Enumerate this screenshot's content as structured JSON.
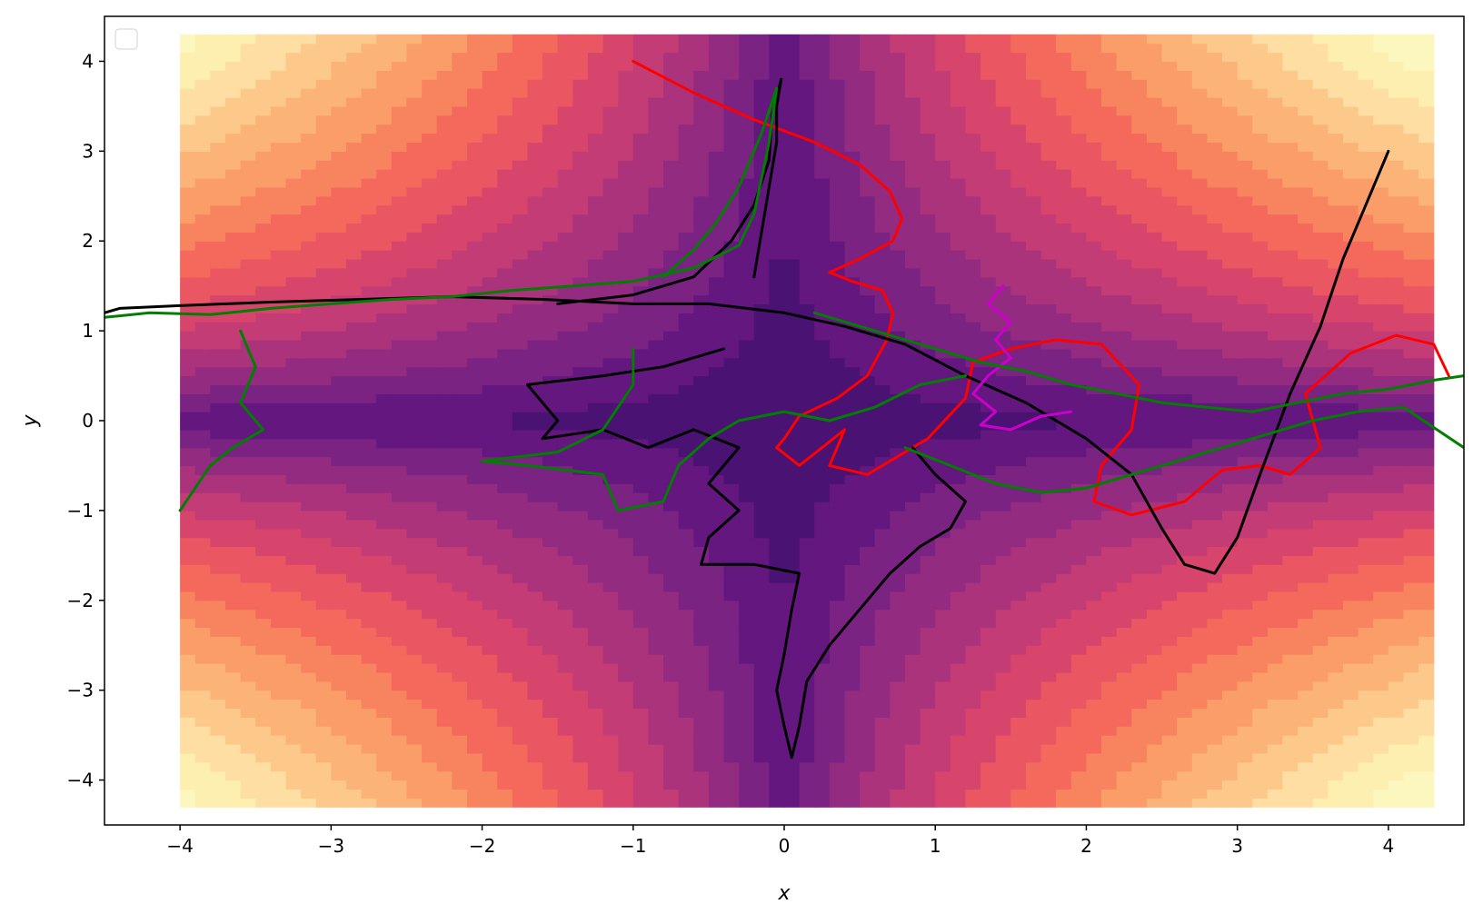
{
  "chart_data": {
    "type": "line",
    "title": "",
    "xlabel": "x",
    "ylabel": "y",
    "xlim": [
      -4.5,
      4.5
    ],
    "ylim": [
      -4.5,
      4.5
    ],
    "xticks": [
      -4,
      -3,
      -2,
      -1,
      0,
      1,
      2,
      3,
      4
    ],
    "yticks": [
      -4,
      -3,
      -2,
      -1,
      0,
      1,
      2,
      3,
      4
    ],
    "xtick_labels": [
      "−4",
      "−3",
      "−2",
      "−1",
      "0",
      "1",
      "2",
      "3",
      "4"
    ],
    "ytick_labels": [
      "−4",
      "−3",
      "−2",
      "−1",
      "0",
      "1",
      "2",
      "3",
      "4"
    ],
    "grid": false,
    "legend": {
      "placement": "upper-left",
      "entries": []
    },
    "background": {
      "type": "filled-contour",
      "colormap": "magma-like",
      "extent": {
        "x": [
          -4,
          4.3
        ],
        "y": [
          -4.3,
          4.3
        ]
      },
      "colors": {
        "low": "#4a1272",
        "mid": "#c2367c",
        "high": "#fcfdbf",
        "levels": [
          "#4a1272",
          "#63177f",
          "#7b2382",
          "#932b80",
          "#ab337c",
          "#c43c75",
          "#d8456c",
          "#ea5661",
          "#f4695c",
          "#f8845f",
          "#fb9d69",
          "#fcb378",
          "#fdc98b",
          "#fedea2",
          "#fcefb0",
          "#fcf7be"
        ]
      }
    },
    "series": [
      {
        "color": "#ff0000",
        "points": [
          [
            -1.0,
            4.0
          ],
          [
            -0.6,
            3.65
          ],
          [
            -0.2,
            3.35
          ],
          [
            0.2,
            3.1
          ],
          [
            0.5,
            2.85
          ],
          [
            0.7,
            2.55
          ],
          [
            0.78,
            2.25
          ],
          [
            0.72,
            2.0
          ],
          [
            0.5,
            1.8
          ],
          [
            0.3,
            1.65
          ],
          [
            0.45,
            1.55
          ],
          [
            0.65,
            1.45
          ],
          [
            0.72,
            1.2
          ],
          [
            0.68,
            0.9
          ],
          [
            0.55,
            0.5
          ],
          [
            0.35,
            0.25
          ],
          [
            0.1,
            0.05
          ],
          [
            0.0,
            -0.2
          ],
          [
            -0.05,
            -0.3
          ],
          [
            0.1,
            -0.5
          ],
          [
            0.25,
            -0.3
          ],
          [
            0.4,
            -0.1
          ],
          [
            0.3,
            -0.5
          ],
          [
            0.55,
            -0.6
          ],
          [
            0.75,
            -0.4
          ],
          [
            0.95,
            -0.2
          ],
          [
            1.2,
            0.25
          ],
          [
            1.25,
            0.65
          ],
          [
            1.5,
            0.8
          ],
          [
            1.8,
            0.9
          ],
          [
            2.1,
            0.85
          ],
          [
            2.35,
            0.4
          ],
          [
            2.3,
            -0.1
          ],
          [
            2.1,
            -0.5
          ],
          [
            2.05,
            -0.9
          ],
          [
            2.3,
            -1.05
          ],
          [
            2.65,
            -0.9
          ],
          [
            2.9,
            -0.55
          ],
          [
            3.15,
            -0.5
          ],
          [
            3.35,
            -0.6
          ],
          [
            3.55,
            -0.3
          ],
          [
            3.45,
            0.3
          ],
          [
            3.75,
            0.75
          ],
          [
            4.05,
            0.95
          ],
          [
            4.3,
            0.85
          ],
          [
            4.4,
            0.5
          ]
        ]
      },
      {
        "color": "#000000",
        "points": [
          [
            4.0,
            3.0
          ],
          [
            3.85,
            2.4
          ],
          [
            3.7,
            1.8
          ],
          [
            3.55,
            1.05
          ],
          [
            3.35,
            0.3
          ],
          [
            3.15,
            -0.6
          ],
          [
            3.0,
            -1.3
          ],
          [
            2.85,
            -1.7
          ],
          [
            2.65,
            -1.6
          ],
          [
            2.5,
            -1.2
          ],
          [
            2.3,
            -0.6
          ],
          [
            2.0,
            -0.2
          ],
          [
            1.6,
            0.2
          ],
          [
            1.2,
            0.5
          ],
          [
            0.8,
            0.85
          ],
          [
            0.4,
            1.05
          ],
          [
            0.0,
            1.2
          ],
          [
            -0.5,
            1.3
          ],
          [
            -1.0,
            1.3
          ],
          [
            -1.6,
            1.35
          ],
          [
            -2.2,
            1.38
          ],
          [
            -2.8,
            1.35
          ],
          [
            -3.4,
            1.32
          ],
          [
            -4.0,
            1.28
          ],
          [
            -4.4,
            1.25
          ],
          [
            -4.5,
            1.2
          ]
        ]
      },
      {
        "color": "#000000",
        "points": [
          [
            -0.2,
            1.6
          ],
          [
            -0.15,
            2.1
          ],
          [
            -0.1,
            2.6
          ],
          [
            -0.05,
            3.1
          ],
          [
            -0.05,
            3.5
          ],
          [
            -0.02,
            3.8
          ],
          [
            -0.08,
            3.4
          ],
          [
            -0.1,
            2.9
          ],
          [
            -0.2,
            2.4
          ],
          [
            -0.35,
            2.0
          ],
          [
            -0.6,
            1.6
          ],
          [
            -1.0,
            1.4
          ],
          [
            -1.5,
            1.3
          ]
        ]
      },
      {
        "color": "#000000",
        "points": [
          [
            -0.4,
            0.8
          ],
          [
            -0.8,
            0.6
          ],
          [
            -1.2,
            0.5
          ],
          [
            -1.7,
            0.4
          ],
          [
            -1.5,
            0.0
          ],
          [
            -1.6,
            -0.2
          ],
          [
            -1.2,
            -0.1
          ],
          [
            -0.9,
            -0.3
          ],
          [
            -0.6,
            -0.1
          ],
          [
            -0.3,
            -0.3
          ],
          [
            -0.5,
            -0.7
          ],
          [
            -0.3,
            -1.0
          ],
          [
            -0.5,
            -1.3
          ],
          [
            -0.55,
            -1.6
          ],
          [
            -0.2,
            -1.6
          ],
          [
            0.1,
            -1.7
          ],
          [
            0.05,
            -2.1
          ],
          [
            0.0,
            -2.6
          ],
          [
            -0.05,
            -3.0
          ],
          [
            0.0,
            -3.4
          ],
          [
            0.05,
            -3.75
          ],
          [
            0.1,
            -3.4
          ],
          [
            0.15,
            -2.9
          ],
          [
            0.3,
            -2.5
          ],
          [
            0.5,
            -2.1
          ],
          [
            0.7,
            -1.7
          ],
          [
            0.9,
            -1.4
          ],
          [
            1.1,
            -1.2
          ],
          [
            1.2,
            -0.9
          ],
          [
            1.0,
            -0.6
          ],
          [
            0.85,
            -0.3
          ]
        ]
      },
      {
        "color": "#cc00cc",
        "points": [
          [
            1.45,
            1.5
          ],
          [
            1.35,
            1.3
          ],
          [
            1.5,
            1.1
          ],
          [
            1.4,
            0.9
          ],
          [
            1.5,
            0.7
          ],
          [
            1.35,
            0.5
          ],
          [
            1.25,
            0.3
          ],
          [
            1.4,
            0.1
          ],
          [
            1.3,
            -0.05
          ],
          [
            1.5,
            -0.1
          ],
          [
            1.7,
            0.05
          ],
          [
            1.9,
            0.1
          ]
        ]
      },
      {
        "color": "#007f00",
        "points": [
          [
            -4.5,
            1.15
          ],
          [
            -4.2,
            1.2
          ],
          [
            -3.8,
            1.18
          ],
          [
            -3.4,
            1.25
          ],
          [
            -3.0,
            1.3
          ],
          [
            -2.6,
            1.35
          ],
          [
            -2.2,
            1.38
          ],
          [
            -1.8,
            1.45
          ],
          [
            -1.4,
            1.5
          ],
          [
            -1.0,
            1.55
          ],
          [
            -0.6,
            1.7
          ],
          [
            -0.3,
            1.95
          ],
          [
            -0.2,
            2.3
          ],
          [
            -0.15,
            2.7
          ],
          [
            -0.1,
            3.1
          ],
          [
            -0.05,
            3.7
          ],
          [
            -0.15,
            3.2
          ],
          [
            -0.3,
            2.6
          ],
          [
            -0.45,
            2.2
          ],
          [
            -0.6,
            1.9
          ],
          [
            -0.8,
            1.6
          ]
        ]
      },
      {
        "color": "#007f00",
        "points": [
          [
            -3.6,
            1.0
          ],
          [
            -3.5,
            0.6
          ],
          [
            -3.6,
            0.2
          ],
          [
            -3.45,
            -0.1
          ],
          [
            -3.65,
            -0.3
          ],
          [
            -3.8,
            -0.5
          ],
          [
            -4.0,
            -1.0
          ]
        ]
      },
      {
        "color": "#007f00",
        "points": [
          [
            -1.0,
            0.8
          ],
          [
            -1.0,
            0.4
          ],
          [
            -1.2,
            -0.1
          ],
          [
            -1.5,
            -0.35
          ],
          [
            -2.0,
            -0.45
          ],
          [
            -1.7,
            -0.5
          ],
          [
            -1.2,
            -0.6
          ],
          [
            -1.1,
            -1.0
          ],
          [
            -0.8,
            -0.9
          ],
          [
            -0.7,
            -0.5
          ],
          [
            -0.5,
            -0.2
          ],
          [
            -0.3,
            0.0
          ],
          [
            0.0,
            0.1
          ],
          [
            0.3,
            0.0
          ],
          [
            0.6,
            0.15
          ],
          [
            0.9,
            0.4
          ],
          [
            1.2,
            0.5
          ]
        ]
      },
      {
        "color": "#007f00",
        "points": [
          [
            0.2,
            1.2
          ],
          [
            0.6,
            1.0
          ],
          [
            1.0,
            0.8
          ],
          [
            1.3,
            0.65
          ],
          [
            1.6,
            0.55
          ],
          [
            1.9,
            0.4
          ],
          [
            2.2,
            0.3
          ],
          [
            2.5,
            0.2
          ],
          [
            2.8,
            0.15
          ],
          [
            3.1,
            0.1
          ],
          [
            3.4,
            0.2
          ],
          [
            3.7,
            0.3
          ],
          [
            4.0,
            0.35
          ],
          [
            4.3,
            0.45
          ],
          [
            4.5,
            0.5
          ]
        ]
      },
      {
        "color": "#007f00",
        "points": [
          [
            0.8,
            -0.3
          ],
          [
            1.1,
            -0.5
          ],
          [
            1.4,
            -0.7
          ],
          [
            1.7,
            -0.8
          ],
          [
            2.0,
            -0.75
          ],
          [
            2.3,
            -0.6
          ],
          [
            2.6,
            -0.45
          ],
          [
            2.9,
            -0.3
          ],
          [
            3.2,
            -0.15
          ],
          [
            3.5,
            0.0
          ],
          [
            3.8,
            0.1
          ],
          [
            4.1,
            0.15
          ],
          [
            4.5,
            -0.3
          ]
        ]
      }
    ]
  }
}
